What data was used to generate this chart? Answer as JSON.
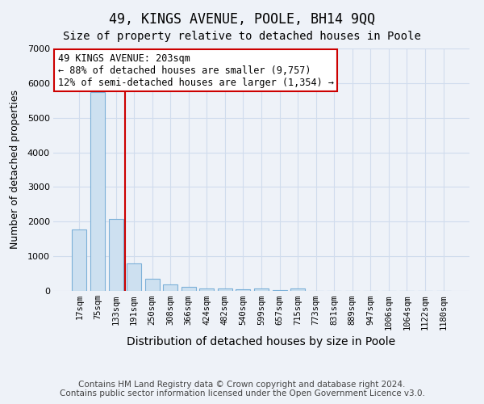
{
  "title": "49, KINGS AVENUE, POOLE, BH14 9QQ",
  "subtitle": "Size of property relative to detached houses in Poole",
  "xlabel": "Distribution of detached houses by size in Poole",
  "ylabel": "Number of detached properties",
  "categories": [
    "17sqm",
    "75sqm",
    "133sqm",
    "191sqm",
    "250sqm",
    "308sqm",
    "366sqm",
    "424sqm",
    "482sqm",
    "540sqm",
    "599sqm",
    "657sqm",
    "715sqm",
    "773sqm",
    "831sqm",
    "889sqm",
    "947sqm",
    "1006sqm",
    "1064sqm",
    "1122sqm",
    "1180sqm"
  ],
  "values": [
    1780,
    5750,
    2070,
    800,
    340,
    195,
    110,
    80,
    65,
    55,
    60,
    30,
    80,
    0,
    0,
    0,
    0,
    0,
    0,
    0,
    0
  ],
  "bar_color": "#cde0f0",
  "bar_edge_color": "#7cb0d8",
  "grid_color": "#d0dced",
  "background_color": "#eef2f8",
  "plot_bg_color": "#eef2f8",
  "property_line_color": "#cc0000",
  "property_line_x": 2.5,
  "annotation_text": "49 KINGS AVENUE: 203sqm\n← 88% of detached houses are smaller (9,757)\n12% of semi-detached houses are larger (1,354) →",
  "annotation_box_color": "#cc0000",
  "ylim": [
    0,
    7000
  ],
  "yticks": [
    0,
    1000,
    2000,
    3000,
    4000,
    5000,
    6000,
    7000
  ],
  "footer_line1": "Contains HM Land Registry data © Crown copyright and database right 2024.",
  "footer_line2": "Contains public sector information licensed under the Open Government Licence v3.0.",
  "title_fontsize": 12,
  "subtitle_fontsize": 10,
  "xlabel_fontsize": 10,
  "ylabel_fontsize": 9,
  "tick_fontsize": 7.5,
  "annotation_fontsize": 8.5,
  "footer_fontsize": 7.5
}
